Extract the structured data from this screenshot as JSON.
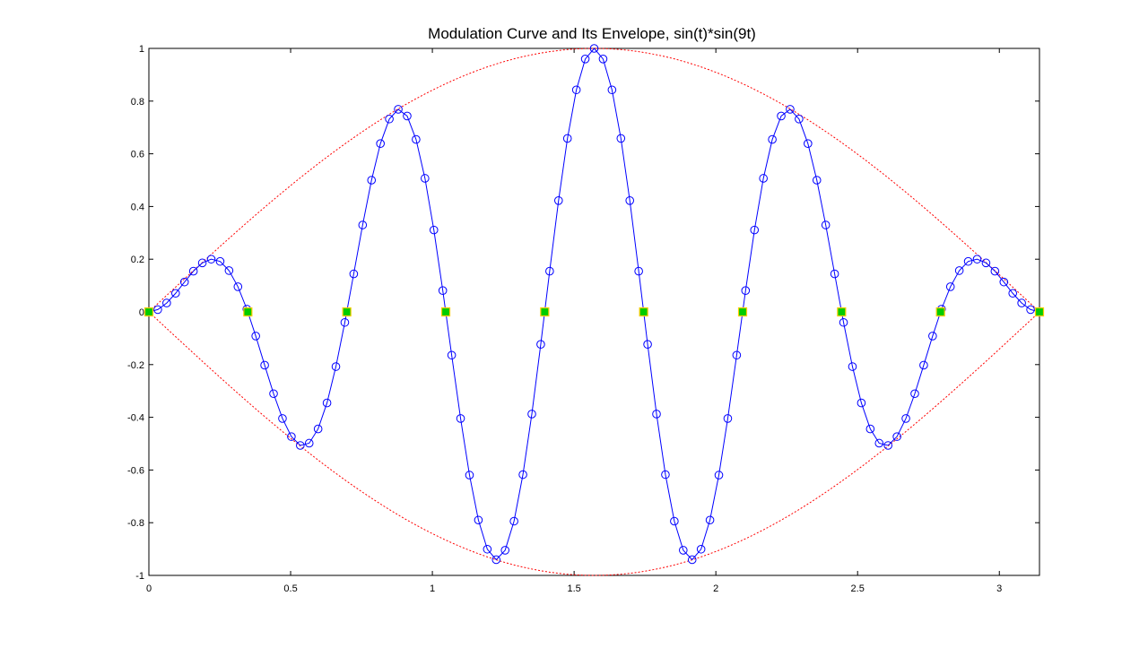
{
  "chart_data": {
    "type": "line",
    "title": "Modulation Curve and Its Envelope, sin(t)*sin(9t)",
    "xlabel": "",
    "ylabel": "",
    "xlim": [
      0,
      3.14159
    ],
    "ylim": [
      -1,
      1
    ],
    "xticks": [
      0,
      0.5,
      1,
      1.5,
      2,
      2.5,
      3
    ],
    "xtick_labels": [
      "0",
      "0.5",
      "1",
      "1.5",
      "2",
      "2.5",
      "3"
    ],
    "yticks": [
      -1,
      -0.8,
      -0.6,
      -0.4,
      -0.2,
      0,
      0.2,
      0.4,
      0.6,
      0.8,
      1
    ],
    "ytick_labels": [
      "-1",
      "-0.8",
      "-0.6",
      "-0.4",
      "-0.2",
      "0",
      "0.2",
      "0.4",
      "0.6",
      "0.8",
      "1"
    ],
    "grid": false,
    "legend": "none",
    "series": [
      {
        "role": "curve",
        "style": "solid line with circle markers",
        "color": "#0000ff",
        "expression": "sin(t)*sin(9t)",
        "t_start": 0,
        "t_end": 3.14159,
        "point_count": 101
      },
      {
        "role": "upper envelope",
        "style": "dotted line",
        "color": "#ff0000",
        "expression": "sin(t)",
        "t_start": 0,
        "t_end": 3.14159,
        "point_count": 101
      },
      {
        "role": "lower envelope",
        "style": "dotted line",
        "color": "#ff0000",
        "expression": "-sin(t)",
        "t_start": 0,
        "t_end": 3.14159,
        "point_count": 101
      },
      {
        "role": "zero crossings",
        "style": "square markers",
        "color": "#00cc00",
        "edge_color": "#ffcc00",
        "x": [
          0,
          0.3491,
          0.6981,
          1.0472,
          1.3963,
          1.7453,
          2.0944,
          2.4435,
          2.7925,
          3.1416
        ],
        "y": [
          0,
          0,
          0,
          0,
          0,
          0,
          0,
          0,
          0,
          0
        ]
      }
    ]
  }
}
